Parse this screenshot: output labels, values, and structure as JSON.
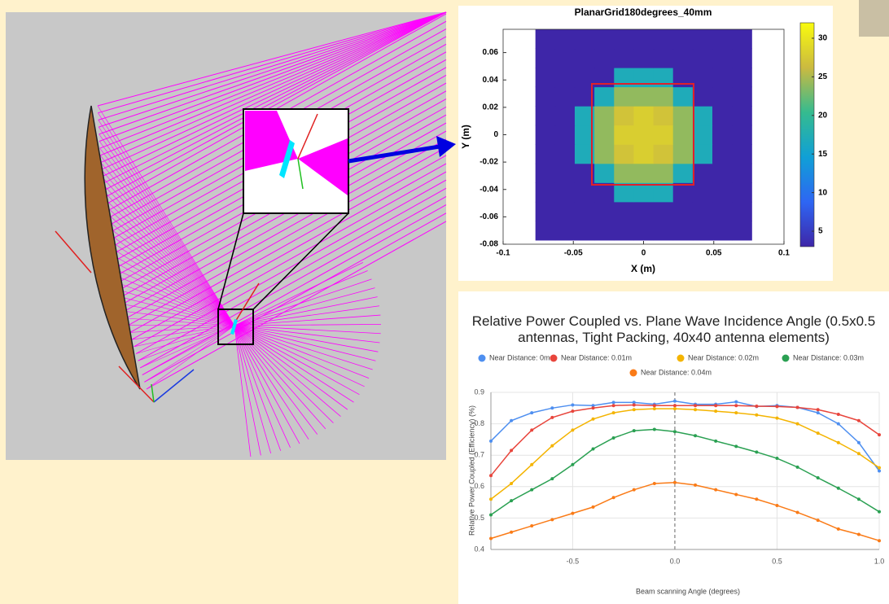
{
  "chart_data": [
    {
      "type": "heatmap",
      "title": "PlanarGrid180degrees_40mm",
      "x_label": "X (m)",
      "y_label": "Y (m)",
      "x": [
        -0.07,
        -0.056,
        -0.042,
        -0.028,
        -0.014,
        0,
        0.014,
        0.028,
        0.042,
        0.056,
        0.07
      ],
      "y": [
        -0.07,
        -0.056,
        -0.042,
        -0.028,
        -0.014,
        0,
        0.014,
        0.028,
        0.042,
        0.056,
        0.07
      ],
      "values": [
        [
          3,
          3,
          3,
          3,
          3,
          3,
          3,
          3,
          3,
          3,
          3
        ],
        [
          3,
          3,
          3,
          3,
          3,
          3,
          3,
          3,
          3,
          3,
          3
        ],
        [
          3,
          3,
          3,
          3,
          17,
          17,
          17,
          3,
          3,
          3,
          3
        ],
        [
          3,
          3,
          3,
          17,
          24,
          24,
          24,
          17,
          3,
          3,
          3
        ],
        [
          3,
          3,
          17,
          24,
          27,
          28,
          27,
          24,
          17,
          3,
          3
        ],
        [
          3,
          3,
          17,
          24,
          28,
          28,
          28,
          24,
          17,
          3,
          3
        ],
        [
          3,
          3,
          17,
          24,
          27,
          28,
          27,
          24,
          17,
          3,
          3
        ],
        [
          3,
          3,
          3,
          17,
          24,
          24,
          24,
          17,
          3,
          3,
          3
        ],
        [
          3,
          3,
          3,
          3,
          17,
          17,
          17,
          3,
          3,
          3,
          3
        ],
        [
          3,
          3,
          3,
          3,
          3,
          3,
          3,
          3,
          3,
          3,
          3
        ],
        [
          3,
          3,
          3,
          3,
          3,
          3,
          3,
          3,
          3,
          3,
          3
        ]
      ],
      "xlim": [
        -0.1,
        0.1
      ],
      "ylim": [
        -0.08,
        0.077
      ],
      "xticks": [
        -0.1,
        -0.05,
        0,
        0.05,
        0.1
      ],
      "yticks": [
        -0.08,
        -0.06,
        -0.04,
        -0.02,
        0,
        0.02,
        0.04,
        0.06
      ],
      "zlim": [
        3,
        32
      ],
      "zticks": [
        5,
        10,
        15,
        20,
        25,
        30
      ],
      "colormap": "parula"
    },
    {
      "type": "line",
      "title": "Relative Power Coupled vs. Plane Wave Incidence Angle (0.5x0.5 antennas, Tight Packing, 40x40 antenna elements)",
      "x_label": "Beam scanning Angle (degrees)",
      "y_label": "Relative Power Coupled (Efficiency) (%)",
      "x": [
        -0.9,
        -0.8,
        -0.7,
        -0.6,
        -0.5,
        -0.4,
        -0.3,
        -0.2,
        -0.1,
        0,
        0.1,
        0.2,
        0.3,
        0.4,
        0.5,
        0.6,
        0.7,
        0.8,
        0.9,
        1.0
      ],
      "series": [
        {
          "name": "Near Distance: 0m",
          "color": "#4e8ff0",
          "values": [
            0.745,
            0.81,
            0.835,
            0.85,
            0.86,
            0.858,
            0.868,
            0.868,
            0.862,
            0.872,
            0.862,
            0.862,
            0.87,
            0.855,
            0.858,
            0.852,
            0.835,
            0.8,
            0.74,
            0.65
          ]
        },
        {
          "name": "Near Distance: 0.01m",
          "color": "#e8453c",
          "values": [
            0.635,
            0.715,
            0.78,
            0.82,
            0.84,
            0.85,
            0.858,
            0.86,
            0.858,
            0.858,
            0.858,
            0.858,
            0.858,
            0.856,
            0.855,
            0.852,
            0.845,
            0.83,
            0.81,
            0.765
          ]
        },
        {
          "name": "Near Distance: 0.02m",
          "color": "#f4b400",
          "values": [
            0.56,
            0.61,
            0.67,
            0.73,
            0.78,
            0.815,
            0.835,
            0.845,
            0.848,
            0.848,
            0.845,
            0.84,
            0.835,
            0.828,
            0.818,
            0.8,
            0.77,
            0.74,
            0.705,
            0.66
          ]
        },
        {
          "name": "Near Distance: 0.03m",
          "color": "#2aa052",
          "values": [
            0.51,
            0.555,
            0.59,
            0.625,
            0.67,
            0.72,
            0.755,
            0.778,
            0.782,
            0.775,
            0.762,
            0.745,
            0.728,
            0.71,
            0.69,
            0.662,
            0.628,
            0.595,
            0.56,
            0.52
          ]
        },
        {
          "name": "Near Distance: 0.04m",
          "color": "#fa7b17",
          "values": [
            0.435,
            0.455,
            0.475,
            0.495,
            0.515,
            0.535,
            0.565,
            0.59,
            0.61,
            0.613,
            0.605,
            0.59,
            0.575,
            0.56,
            0.54,
            0.518,
            0.493,
            0.465,
            0.448,
            0.428
          ]
        }
      ],
      "xlim": [
        -0.9,
        1.0
      ],
      "ylim": [
        0.4,
        0.9
      ],
      "xticks": [
        -0.5,
        {
          "value": 0,
          "label": "0.0"
        },
        0.5,
        {
          "value": 1,
          "label": "1.0"
        }
      ],
      "yticks": [
        0.4,
        0.5,
        0.6,
        0.7,
        0.8,
        0.9
      ],
      "grid": true,
      "legend": "top"
    }
  ]
}
